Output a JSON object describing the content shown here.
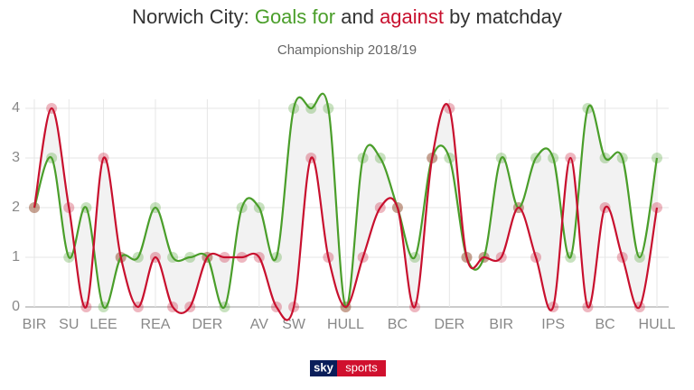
{
  "chart_data": {
    "type": "line",
    "title": [
      "Norwich City:",
      "and",
      "by matchday"
    ],
    "subtitle": "Championship 2018/19",
    "categories": [
      "BIR",
      null,
      "SU",
      null,
      "LEE",
      null,
      null,
      "REA",
      null,
      null,
      "DER",
      null,
      null,
      "AV",
      null,
      "SW",
      null,
      null,
      "HULL",
      null,
      null,
      "BC",
      null,
      null,
      "DER",
      null,
      null,
      "BIR",
      null,
      null,
      "IPS",
      null,
      null,
      "BC",
      null,
      null,
      "HULL"
    ],
    "series": [
      {
        "name": "Goals for",
        "color": "#4a9e2a",
        "values": [
          2,
          3,
          1,
          2,
          0,
          1,
          1,
          2,
          1,
          1,
          1,
          0,
          2,
          2,
          1,
          4,
          4,
          4,
          0,
          3,
          3,
          2,
          1,
          3,
          3,
          1,
          1,
          3,
          2,
          3,
          3,
          1,
          4,
          3,
          3,
          1,
          3
        ]
      },
      {
        "name": "against",
        "color": "#c8102e",
        "values": [
          2,
          4,
          2,
          0,
          3,
          1,
          0,
          1,
          0,
          0,
          1,
          1,
          1,
          1,
          0,
          0,
          3,
          1,
          0,
          1,
          2,
          2,
          0,
          3,
          4,
          1,
          1,
          1,
          2,
          1,
          0,
          3,
          0,
          2,
          1,
          0,
          2
        ]
      }
    ],
    "ylim": [
      0,
      4
    ],
    "yticks": [
      0,
      1,
      2,
      3,
      4
    ],
    "grid": true,
    "logo": [
      "sky",
      "sports"
    ]
  }
}
